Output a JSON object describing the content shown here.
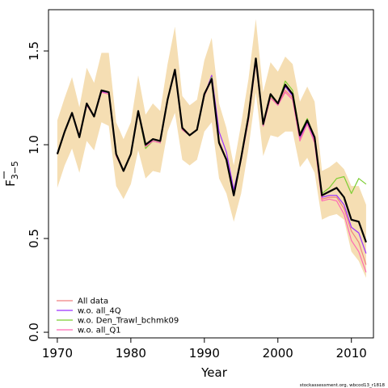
{
  "chart_data": {
    "type": "line",
    "xlabel": "Year",
    "ylabel": "F",
    "ylabel_sub": "3−5",
    "xlim": [
      1968.8,
      2013.0
    ],
    "ylim": [
      -0.03,
      1.72
    ],
    "xticks": [
      1970,
      1980,
      1990,
      2000,
      2010
    ],
    "yticks": [
      0.0,
      0.5,
      1.0,
      1.5
    ],
    "ytick_labels": [
      "0.0",
      "0.5",
      "1.0",
      "1.5"
    ],
    "grid": false,
    "legend_position": "bottom-left",
    "footer": "stockassessment.org, wbcod13_r1818",
    "x": [
      1970,
      1971,
      1972,
      1973,
      1974,
      1975,
      1976,
      1977,
      1978,
      1979,
      1980,
      1981,
      1982,
      1983,
      1984,
      1985,
      1986,
      1987,
      1988,
      1989,
      1990,
      1991,
      1992,
      1993,
      1994,
      1995,
      1996,
      1997,
      1998,
      1999,
      2000,
      2001,
      2002,
      2003,
      2004,
      2005,
      2006,
      2007,
      2008,
      2009,
      2010,
      2011,
      2012
    ],
    "band": {
      "color": "#F5DEB3",
      "lower": [
        0.77,
        0.89,
        0.98,
        0.85,
        1.02,
        0.97,
        1.12,
        1.1,
        0.78,
        0.71,
        0.79,
        0.97,
        0.82,
        0.86,
        0.85,
        1.07,
        1.17,
        0.92,
        0.89,
        0.92,
        1.07,
        1.12,
        0.82,
        0.74,
        0.59,
        0.74,
        0.98,
        1.28,
        0.94,
        1.05,
        1.04,
        1.07,
        1.07,
        0.88,
        0.93,
        0.85,
        0.6,
        0.62,
        0.63,
        0.6,
        0.43,
        0.38,
        0.29
      ],
      "upper": [
        1.13,
        1.25,
        1.36,
        1.2,
        1.41,
        1.33,
        1.49,
        1.49,
        1.12,
        1.03,
        1.12,
        1.37,
        1.16,
        1.22,
        1.18,
        1.43,
        1.63,
        1.26,
        1.21,
        1.24,
        1.45,
        1.57,
        1.22,
        1.09,
        0.89,
        1.11,
        1.35,
        1.67,
        1.28,
        1.44,
        1.39,
        1.47,
        1.43,
        1.23,
        1.31,
        1.23,
        0.86,
        0.88,
        0.91,
        0.87,
        0.78,
        0.78,
        0.68
      ]
    },
    "series": [
      {
        "name": "All data",
        "color": "#F08080",
        "width": 1.2,
        "values": [
          0.95,
          1.07,
          1.17,
          1.05,
          1.22,
          1.15,
          1.29,
          1.28,
          0.95,
          0.86,
          0.95,
          1.17,
          0.99,
          1.03,
          1.02,
          1.24,
          1.4,
          1.08,
          1.05,
          1.08,
          1.26,
          1.37,
          1.02,
          0.92,
          0.73,
          0.92,
          1.14,
          1.46,
          1.1,
          1.25,
          1.22,
          1.29,
          1.25,
          1.03,
          1.12,
          1.02,
          0.71,
          0.72,
          0.72,
          0.66,
          0.54,
          0.48,
          0.36
        ]
      },
      {
        "name": "w.o. all_4Q",
        "color": "#9B30FF",
        "width": 1.2,
        "values": [
          0.95,
          1.07,
          1.17,
          1.04,
          1.22,
          1.15,
          1.28,
          1.28,
          0.95,
          0.86,
          0.95,
          1.17,
          1.0,
          1.02,
          1.01,
          1.24,
          1.4,
          1.08,
          1.05,
          1.08,
          1.26,
          1.37,
          1.07,
          0.96,
          0.76,
          0.93,
          1.14,
          1.45,
          1.1,
          1.26,
          1.22,
          1.31,
          1.26,
          1.04,
          1.12,
          1.03,
          0.72,
          0.73,
          0.73,
          0.68,
          0.56,
          0.53,
          0.42
        ]
      },
      {
        "name": "w.o. Den_Trawl_bchmk09",
        "color": "#7CCD32",
        "width": 1.2,
        "values": [
          0.95,
          1.07,
          1.17,
          1.04,
          1.22,
          1.15,
          1.29,
          1.28,
          0.95,
          0.86,
          0.95,
          1.17,
          0.98,
          1.02,
          1.01,
          1.24,
          1.4,
          1.08,
          1.05,
          1.08,
          1.26,
          1.36,
          1.01,
          0.92,
          0.73,
          0.94,
          1.16,
          1.45,
          1.12,
          1.26,
          1.22,
          1.34,
          1.29,
          1.06,
          1.14,
          1.04,
          0.74,
          0.77,
          0.82,
          0.83,
          0.74,
          0.82,
          0.79
        ]
      },
      {
        "name": "w.o. all_Q1",
        "color": "#FF69B4",
        "width": 1.2,
        "values": [
          0.95,
          1.07,
          1.17,
          1.04,
          1.21,
          1.15,
          1.28,
          1.27,
          0.94,
          0.86,
          0.95,
          1.17,
          0.99,
          1.02,
          1.01,
          1.24,
          1.39,
          1.08,
          1.05,
          1.08,
          1.26,
          1.35,
          1.02,
          0.92,
          0.73,
          0.92,
          1.13,
          1.44,
          1.1,
          1.25,
          1.21,
          1.28,
          1.24,
          1.02,
          1.11,
          1.01,
          0.7,
          0.71,
          0.7,
          0.63,
          0.49,
          0.43,
          0.32
        ]
      },
      {
        "name": "",
        "color": "#000000",
        "width": 2.2,
        "values": [
          0.95,
          1.07,
          1.17,
          1.04,
          1.22,
          1.15,
          1.29,
          1.28,
          0.95,
          0.86,
          0.95,
          1.18,
          1.0,
          1.03,
          1.02,
          1.24,
          1.4,
          1.09,
          1.05,
          1.08,
          1.27,
          1.35,
          1.01,
          0.92,
          0.73,
          0.93,
          1.15,
          1.46,
          1.11,
          1.27,
          1.22,
          1.32,
          1.27,
          1.05,
          1.13,
          1.04,
          0.73,
          0.75,
          0.77,
          0.72,
          0.6,
          0.59,
          0.48
        ]
      }
    ],
    "legend": [
      {
        "label": "All data",
        "color": "#F08080"
      },
      {
        "label": "w.o. all_4Q",
        "color": "#9B30FF"
      },
      {
        "label": "w.o. Den_Trawl_bchmk09",
        "color": "#7CCD32"
      },
      {
        "label": "w.o. all_Q1",
        "color": "#FF69B4"
      }
    ]
  }
}
